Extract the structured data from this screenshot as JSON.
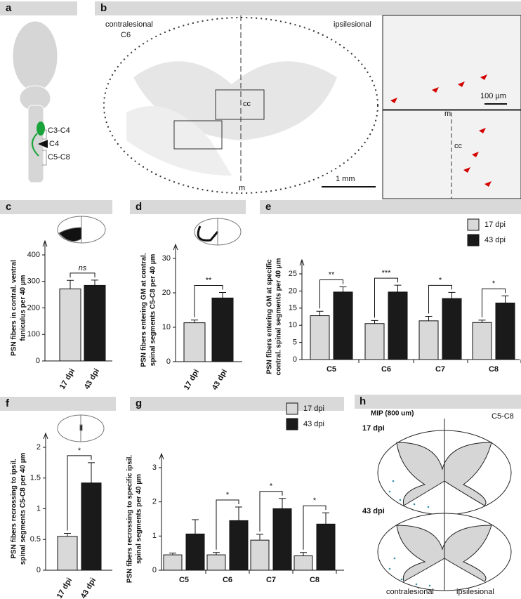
{
  "panels": {
    "a": {
      "label": "a",
      "levels": [
        "C3-C4",
        "C4",
        "C5-C8"
      ]
    },
    "b": {
      "label": "b",
      "side_left": "contralesional",
      "segment": "C6",
      "side_right": "ipsilesional",
      "canal": "cc",
      "midline": "m",
      "scale_main": "1 mm",
      "scale_inset": "100 µm",
      "inset_midline": "m",
      "inset_canal": "cc"
    },
    "h": {
      "label": "h",
      "title": "MIP (800 um)",
      "segments": "C5-C8",
      "group1": "17 dpi",
      "group2": "43 dpi",
      "side_left": "contralesional",
      "side_right": "ipsilesional"
    }
  },
  "chart_data": [
    {
      "type": "bar",
      "panel": "c",
      "y_label": [
        "PSN fibers in contral. ventral",
        "funiculus per 40 µm"
      ],
      "categories": [
        "17 dpi",
        "43 dpi"
      ],
      "colors": [
        "#d9d9d9",
        "#1a1a1a"
      ],
      "series": [
        {
          "values": [
            272,
            285
          ],
          "errors": [
            32,
            20
          ]
        }
      ],
      "significance": [
        "ns"
      ],
      "ylim": [
        0,
        400
      ],
      "yticks": [
        0,
        100,
        200,
        300,
        400
      ]
    },
    {
      "type": "bar",
      "panel": "d",
      "y_label": [
        "PSN fibers entering GM at contral.",
        "spinal segments C5-C8 per 40 µm"
      ],
      "categories": [
        "17 dpi",
        "43 dpi"
      ],
      "colors": [
        "#d9d9d9",
        "#1a1a1a"
      ],
      "series": [
        {
          "values": [
            11.3,
            18.5
          ],
          "errors": [
            0.8,
            1.6
          ]
        }
      ],
      "significance": [
        "**"
      ],
      "ylim": [
        0,
        30
      ],
      "yticks": [
        0,
        10,
        20,
        30
      ]
    },
    {
      "type": "bar",
      "panel": "e",
      "y_label": [
        "PSN fibers entering GM at specific",
        "contral. spinal segments per 40 µm"
      ],
      "categories": [
        "C5",
        "C6",
        "C7",
        "C8"
      ],
      "series": [
        {
          "name": "17 dpi",
          "color": "#d9d9d9",
          "values": [
            12.8,
            10.5,
            11.3,
            10.8
          ],
          "errors": [
            1.3,
            0.9,
            1.3,
            0.7
          ]
        },
        {
          "name": "43 dpi",
          "color": "#1a1a1a",
          "values": [
            19.7,
            19.7,
            17.8,
            16.5
          ],
          "errors": [
            1.5,
            2.0,
            1.8,
            2.1
          ]
        }
      ],
      "significance": [
        "**",
        "***",
        "*",
        "*"
      ],
      "ylim": [
        0,
        25
      ],
      "yticks": [
        0,
        5,
        10,
        15,
        20,
        25
      ]
    },
    {
      "type": "bar",
      "panel": "f",
      "y_label": [
        "PSN fibers recrossing to ipsil.",
        "spinal segments C5-C8 per 40 µm"
      ],
      "categories": [
        "17 dpi",
        "43 dpi"
      ],
      "colors": [
        "#d9d9d9",
        "#1a1a1a"
      ],
      "series": [
        {
          "values": [
            0.55,
            1.42
          ],
          "errors": [
            0.05,
            0.33
          ]
        }
      ],
      "significance": [
        "*"
      ],
      "ylim": [
        0,
        2
      ],
      "yticks": [
        0,
        0.5,
        1,
        1.5,
        2
      ]
    },
    {
      "type": "bar",
      "panel": "g",
      "y_label": [
        "PSN fibers recrossing to specific ipsil.",
        "spinal segments per 40 µm"
      ],
      "categories": [
        "C5",
        "C6",
        "C7",
        "C8"
      ],
      "series": [
        {
          "name": "17 dpi",
          "color": "#d9d9d9",
          "values": [
            0.45,
            0.45,
            0.88,
            0.42
          ],
          "errors": [
            0.05,
            0.07,
            0.17,
            0.1
          ]
        },
        {
          "name": "43 dpi",
          "color": "#1a1a1a",
          "values": [
            1.06,
            1.45,
            1.8,
            1.35
          ],
          "errors": [
            0.42,
            0.4,
            0.3,
            0.33
          ]
        }
      ],
      "significance": [
        null,
        "*",
        "*",
        "*"
      ],
      "ylim": [
        0,
        3
      ],
      "yticks": [
        0,
        1,
        2,
        3
      ]
    }
  ]
}
